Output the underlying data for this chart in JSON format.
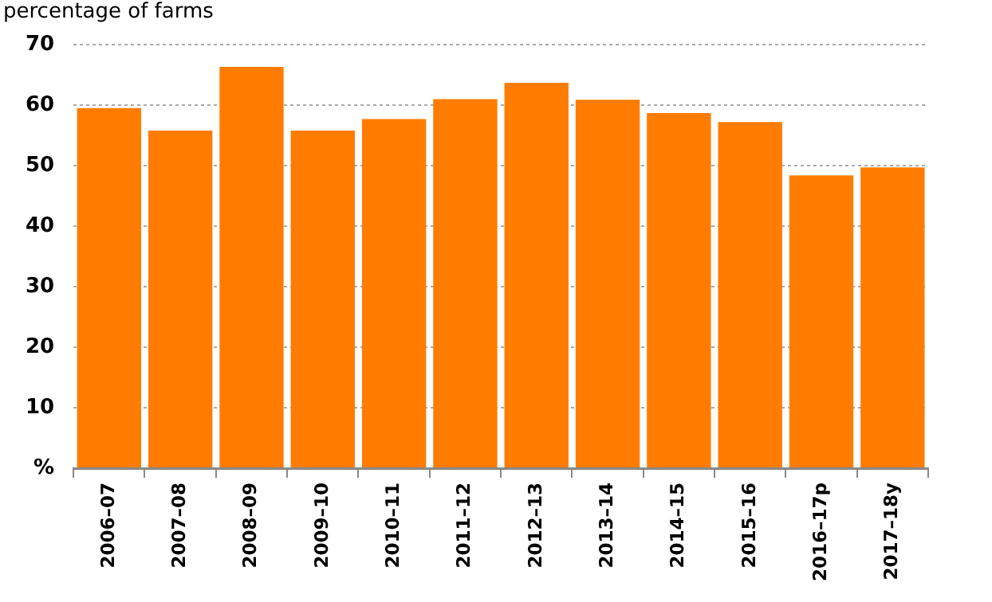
{
  "chart_data": {
    "type": "bar",
    "ylabel": "percentage of farms",
    "categories": [
      "2006–07",
      "2007–08",
      "2008–09",
      "2009–10",
      "2010–11",
      "2011–12",
      "2012–13",
      "2013–14",
      "2014–15",
      "2015–16",
      "2016–17p",
      "2017–18y"
    ],
    "values": [
      59.5,
      55.8,
      66.3,
      55.8,
      57.7,
      61.0,
      63.7,
      60.9,
      58.7,
      57.2,
      48.4,
      49.7
    ],
    "color": "#ff7c00",
    "ylim": [
      0,
      70
    ],
    "yticks": [
      {
        "value": 0,
        "label": "%"
      },
      10,
      20,
      30,
      40,
      50,
      60,
      70
    ],
    "grid": "y",
    "legend": false
  }
}
